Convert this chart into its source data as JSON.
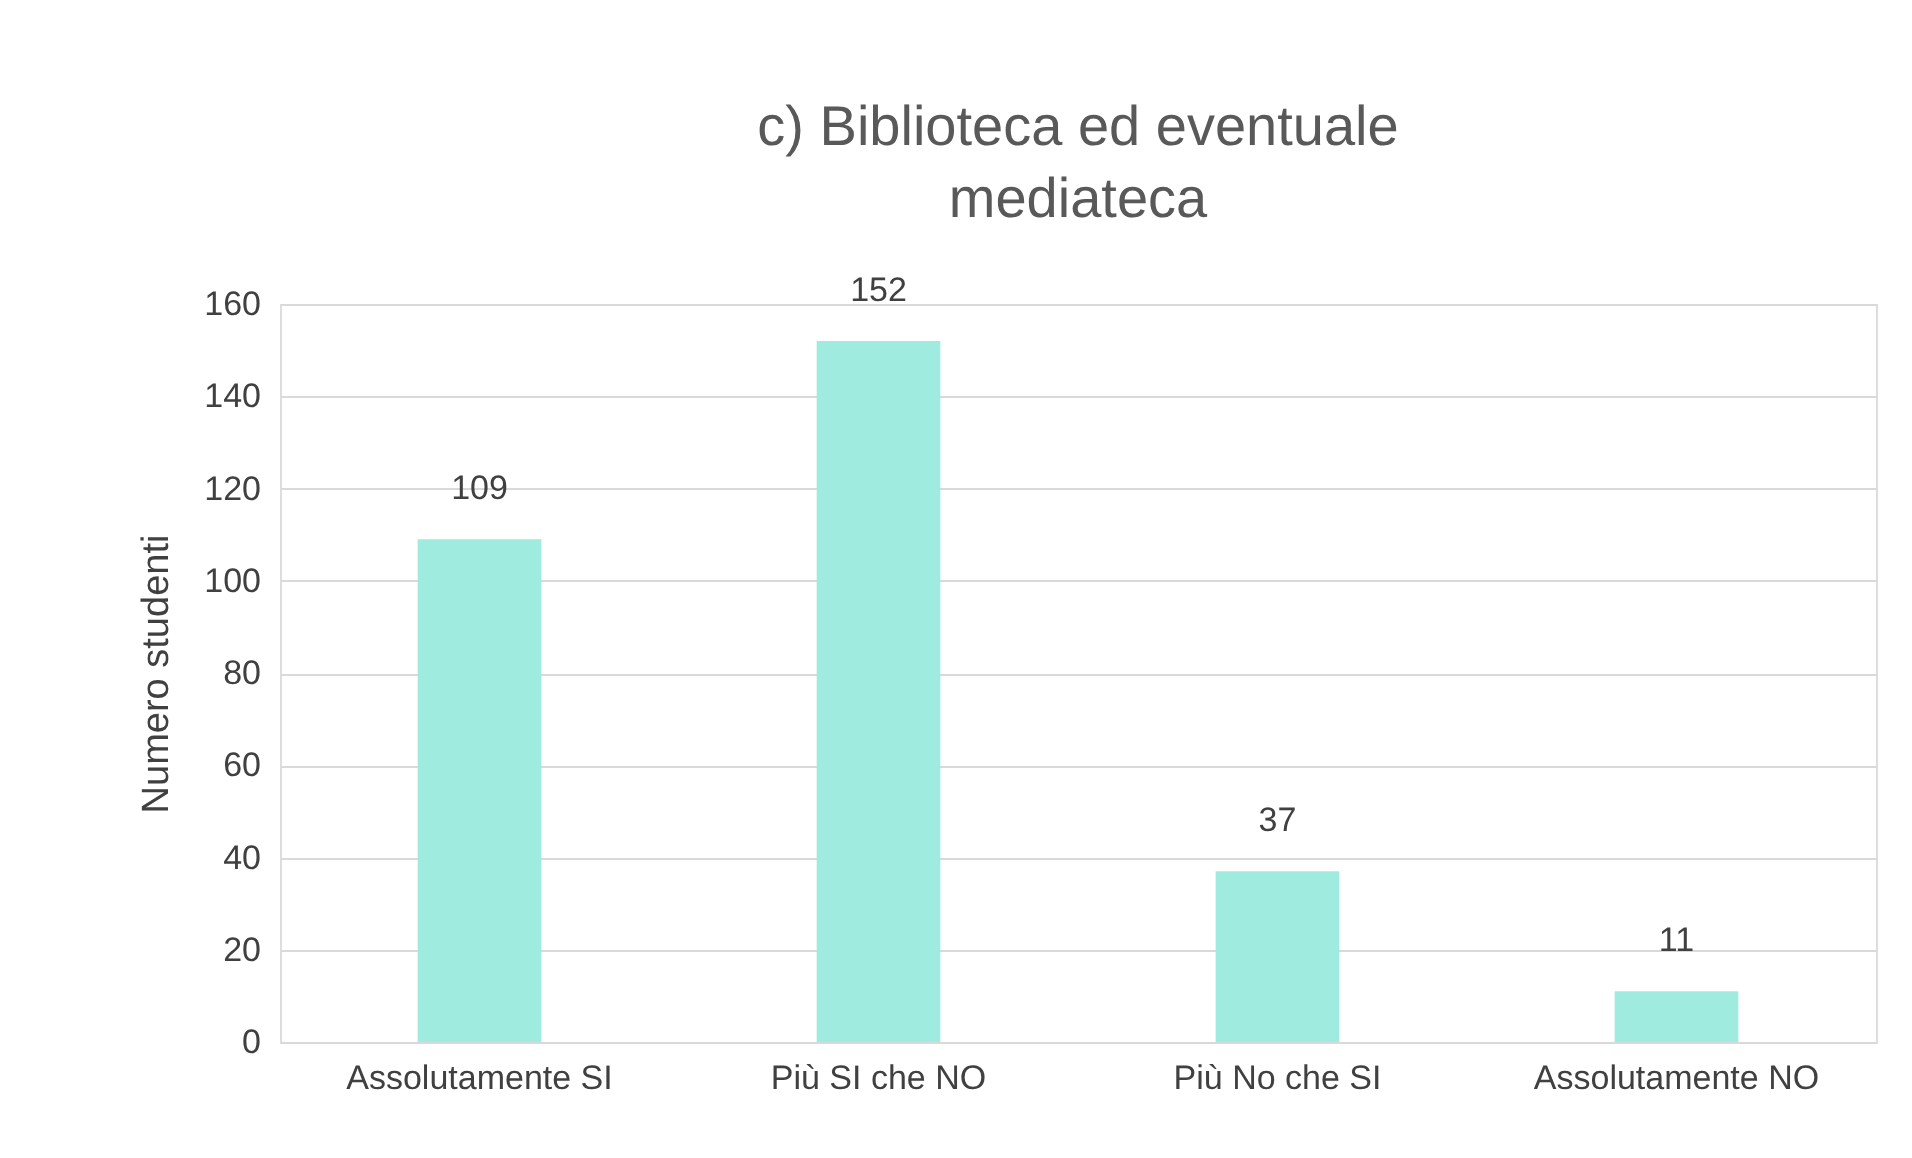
{
  "chart_data": {
    "type": "bar",
    "title": "c) Biblioteca ed eventuale\nmediateca",
    "ylabel": "Numero studenti",
    "categories": [
      "Assolutamente SI",
      "Più SI che NO",
      "Più No che SI",
      "Assolutamente NO"
    ],
    "values": [
      109,
      152,
      37,
      11
    ],
    "color": "#a0ebe0",
    "ylim": [
      0,
      160
    ],
    "yticks": [
      0,
      20,
      40,
      60,
      80,
      100,
      120,
      140,
      160
    ],
    "grid": "y",
    "data_labels": true
  }
}
